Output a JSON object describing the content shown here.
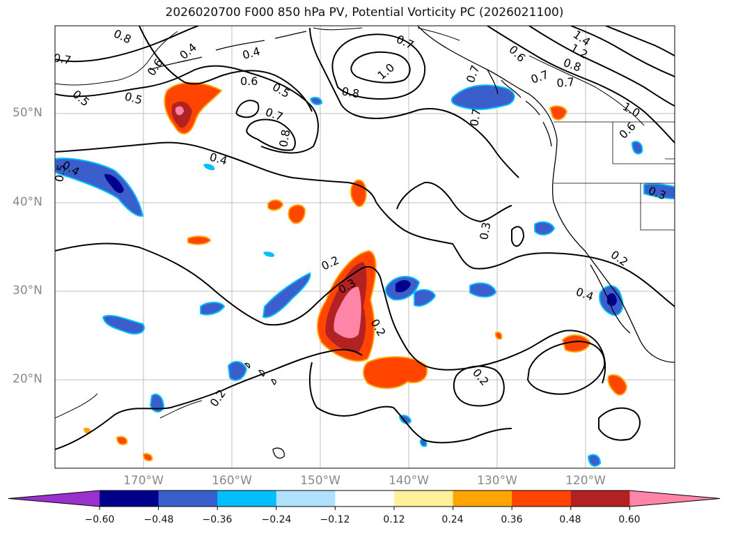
{
  "title": "2026020700 F000 850 hPa PV, Potential Vorticity PC (2026021100)",
  "lat_labels": [
    "50°N",
    "40°N",
    "30°N",
    "20°N"
  ],
  "lon_labels": [
    "170°W",
    "160°W",
    "150°W",
    "140°W",
    "130°W",
    "120°W"
  ],
  "colorbar": {
    "ticks": [
      "−0.60",
      "−0.48",
      "−0.36",
      "−0.24",
      "−0.12",
      "0.12",
      "0.24",
      "0.36",
      "0.48",
      "0.60"
    ],
    "colors": [
      "#9932cc",
      "#00008b",
      "#3a5fcd",
      "#00bfff",
      "#b0e2ff",
      "#ffffff",
      "#fff09a",
      "#ffa500",
      "#ff4500",
      "#b22222",
      "#ff85a8"
    ]
  },
  "contour_labels": [
    "0.8",
    "0.7",
    "0.4",
    "0.6",
    "0.5",
    "0.4",
    "0.6",
    "0.5",
    "0.7",
    "0.8",
    "0.7",
    "1.0",
    "0.8",
    "0.7",
    "0.6",
    "1.4",
    "1.2",
    "0.8",
    "0.7",
    "0.7",
    "1.0",
    "0.6",
    "0.7",
    "0.4",
    "0.4",
    "0.5",
    "0.5",
    "0.3",
    "0.2",
    "0.3",
    "0.2",
    "0.2",
    "0.2",
    "0.4",
    "0.2",
    "0.3"
  ]
}
